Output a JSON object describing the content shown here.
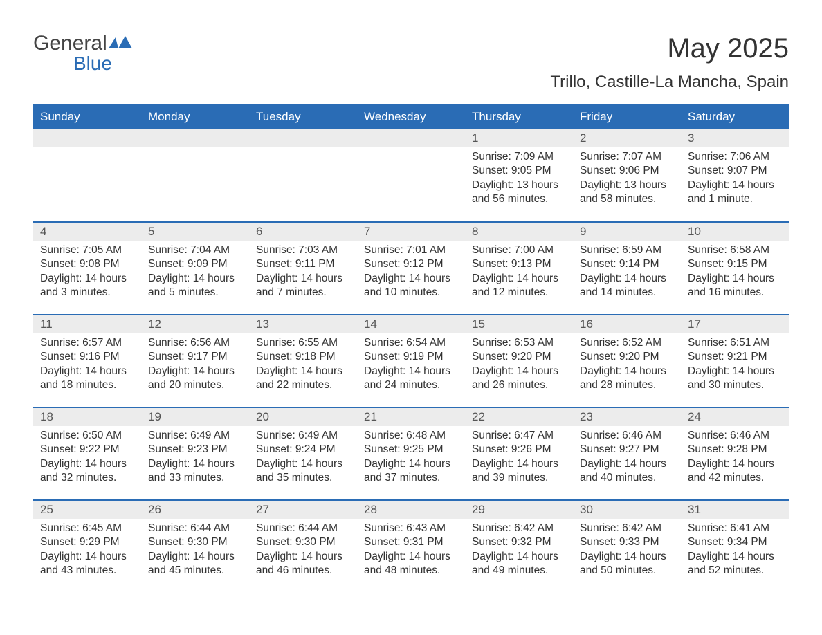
{
  "logo": {
    "word1": "General",
    "word2": "Blue",
    "icon_fill": "#2a6cb5"
  },
  "title": "May 2025",
  "location": "Trillo, Castille-La Mancha, Spain",
  "colors": {
    "header_bg": "#2a6cb5",
    "header_text": "#ffffff",
    "daynum_bg": "#ececec",
    "row_divider": "#2a6cb5",
    "body_text": "#333333"
  },
  "weekdays": [
    "Sunday",
    "Monday",
    "Tuesday",
    "Wednesday",
    "Thursday",
    "Friday",
    "Saturday"
  ],
  "weeks": [
    [
      null,
      null,
      null,
      null,
      {
        "n": "1",
        "sunrise": "Sunrise: 7:09 AM",
        "sunset": "Sunset: 9:05 PM",
        "day1": "Daylight: 13 hours",
        "day2": "and 56 minutes."
      },
      {
        "n": "2",
        "sunrise": "Sunrise: 7:07 AM",
        "sunset": "Sunset: 9:06 PM",
        "day1": "Daylight: 13 hours",
        "day2": "and 58 minutes."
      },
      {
        "n": "3",
        "sunrise": "Sunrise: 7:06 AM",
        "sunset": "Sunset: 9:07 PM",
        "day1": "Daylight: 14 hours",
        "day2": "and 1 minute."
      }
    ],
    [
      {
        "n": "4",
        "sunrise": "Sunrise: 7:05 AM",
        "sunset": "Sunset: 9:08 PM",
        "day1": "Daylight: 14 hours",
        "day2": "and 3 minutes."
      },
      {
        "n": "5",
        "sunrise": "Sunrise: 7:04 AM",
        "sunset": "Sunset: 9:09 PM",
        "day1": "Daylight: 14 hours",
        "day2": "and 5 minutes."
      },
      {
        "n": "6",
        "sunrise": "Sunrise: 7:03 AM",
        "sunset": "Sunset: 9:11 PM",
        "day1": "Daylight: 14 hours",
        "day2": "and 7 minutes."
      },
      {
        "n": "7",
        "sunrise": "Sunrise: 7:01 AM",
        "sunset": "Sunset: 9:12 PM",
        "day1": "Daylight: 14 hours",
        "day2": "and 10 minutes."
      },
      {
        "n": "8",
        "sunrise": "Sunrise: 7:00 AM",
        "sunset": "Sunset: 9:13 PM",
        "day1": "Daylight: 14 hours",
        "day2": "and 12 minutes."
      },
      {
        "n": "9",
        "sunrise": "Sunrise: 6:59 AM",
        "sunset": "Sunset: 9:14 PM",
        "day1": "Daylight: 14 hours",
        "day2": "and 14 minutes."
      },
      {
        "n": "10",
        "sunrise": "Sunrise: 6:58 AM",
        "sunset": "Sunset: 9:15 PM",
        "day1": "Daylight: 14 hours",
        "day2": "and 16 minutes."
      }
    ],
    [
      {
        "n": "11",
        "sunrise": "Sunrise: 6:57 AM",
        "sunset": "Sunset: 9:16 PM",
        "day1": "Daylight: 14 hours",
        "day2": "and 18 minutes."
      },
      {
        "n": "12",
        "sunrise": "Sunrise: 6:56 AM",
        "sunset": "Sunset: 9:17 PM",
        "day1": "Daylight: 14 hours",
        "day2": "and 20 minutes."
      },
      {
        "n": "13",
        "sunrise": "Sunrise: 6:55 AM",
        "sunset": "Sunset: 9:18 PM",
        "day1": "Daylight: 14 hours",
        "day2": "and 22 minutes."
      },
      {
        "n": "14",
        "sunrise": "Sunrise: 6:54 AM",
        "sunset": "Sunset: 9:19 PM",
        "day1": "Daylight: 14 hours",
        "day2": "and 24 minutes."
      },
      {
        "n": "15",
        "sunrise": "Sunrise: 6:53 AM",
        "sunset": "Sunset: 9:20 PM",
        "day1": "Daylight: 14 hours",
        "day2": "and 26 minutes."
      },
      {
        "n": "16",
        "sunrise": "Sunrise: 6:52 AM",
        "sunset": "Sunset: 9:20 PM",
        "day1": "Daylight: 14 hours",
        "day2": "and 28 minutes."
      },
      {
        "n": "17",
        "sunrise": "Sunrise: 6:51 AM",
        "sunset": "Sunset: 9:21 PM",
        "day1": "Daylight: 14 hours",
        "day2": "and 30 minutes."
      }
    ],
    [
      {
        "n": "18",
        "sunrise": "Sunrise: 6:50 AM",
        "sunset": "Sunset: 9:22 PM",
        "day1": "Daylight: 14 hours",
        "day2": "and 32 minutes."
      },
      {
        "n": "19",
        "sunrise": "Sunrise: 6:49 AM",
        "sunset": "Sunset: 9:23 PM",
        "day1": "Daylight: 14 hours",
        "day2": "and 33 minutes."
      },
      {
        "n": "20",
        "sunrise": "Sunrise: 6:49 AM",
        "sunset": "Sunset: 9:24 PM",
        "day1": "Daylight: 14 hours",
        "day2": "and 35 minutes."
      },
      {
        "n": "21",
        "sunrise": "Sunrise: 6:48 AM",
        "sunset": "Sunset: 9:25 PM",
        "day1": "Daylight: 14 hours",
        "day2": "and 37 minutes."
      },
      {
        "n": "22",
        "sunrise": "Sunrise: 6:47 AM",
        "sunset": "Sunset: 9:26 PM",
        "day1": "Daylight: 14 hours",
        "day2": "and 39 minutes."
      },
      {
        "n": "23",
        "sunrise": "Sunrise: 6:46 AM",
        "sunset": "Sunset: 9:27 PM",
        "day1": "Daylight: 14 hours",
        "day2": "and 40 minutes."
      },
      {
        "n": "24",
        "sunrise": "Sunrise: 6:46 AM",
        "sunset": "Sunset: 9:28 PM",
        "day1": "Daylight: 14 hours",
        "day2": "and 42 minutes."
      }
    ],
    [
      {
        "n": "25",
        "sunrise": "Sunrise: 6:45 AM",
        "sunset": "Sunset: 9:29 PM",
        "day1": "Daylight: 14 hours",
        "day2": "and 43 minutes."
      },
      {
        "n": "26",
        "sunrise": "Sunrise: 6:44 AM",
        "sunset": "Sunset: 9:30 PM",
        "day1": "Daylight: 14 hours",
        "day2": "and 45 minutes."
      },
      {
        "n": "27",
        "sunrise": "Sunrise: 6:44 AM",
        "sunset": "Sunset: 9:30 PM",
        "day1": "Daylight: 14 hours",
        "day2": "and 46 minutes."
      },
      {
        "n": "28",
        "sunrise": "Sunrise: 6:43 AM",
        "sunset": "Sunset: 9:31 PM",
        "day1": "Daylight: 14 hours",
        "day2": "and 48 minutes."
      },
      {
        "n": "29",
        "sunrise": "Sunrise: 6:42 AM",
        "sunset": "Sunset: 9:32 PM",
        "day1": "Daylight: 14 hours",
        "day2": "and 49 minutes."
      },
      {
        "n": "30",
        "sunrise": "Sunrise: 6:42 AM",
        "sunset": "Sunset: 9:33 PM",
        "day1": "Daylight: 14 hours",
        "day2": "and 50 minutes."
      },
      {
        "n": "31",
        "sunrise": "Sunrise: 6:41 AM",
        "sunset": "Sunset: 9:34 PM",
        "day1": "Daylight: 14 hours",
        "day2": "and 52 minutes."
      }
    ]
  ]
}
